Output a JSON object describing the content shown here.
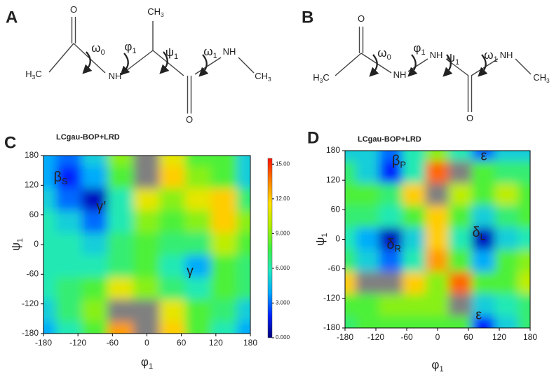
{
  "molecules": [
    {
      "panel": "A",
      "labels": [
        {
          "base": "O"
        },
        {
          "base": "CH",
          "sub": "3"
        },
        {
          "base": "H",
          "sub": "3",
          "tail": "C"
        },
        {
          "base": "NH"
        },
        {
          "base": "NH"
        },
        {
          "base": "CH",
          "sub": "3"
        },
        {
          "base": "O"
        },
        {
          "base": "ω",
          "sub": "0"
        },
        {
          "base": "φ",
          "sub": "1"
        },
        {
          "base": "ψ",
          "sub": "1"
        },
        {
          "base": "ω",
          "sub": "1"
        }
      ]
    },
    {
      "panel": "B",
      "labels": [
        {
          "base": "O"
        },
        {
          "base": "H",
          "sub": "3",
          "tail": "C"
        },
        {
          "base": "NH"
        },
        {
          "base": "NH"
        },
        {
          "base": "NH"
        },
        {
          "base": "CH",
          "sub": "3"
        },
        {
          "base": "O"
        },
        {
          "base": "ω",
          "sub": "0"
        },
        {
          "base": "φ",
          "sub": "1"
        },
        {
          "base": "ψ",
          "sub": "1"
        },
        {
          "base": "ω",
          "sub": "1"
        }
      ]
    }
  ],
  "chart_data": [
    {
      "type": "contour",
      "panel": "C",
      "title": "LCgau-BOP+LRD",
      "x_label": {
        "base": "φ",
        "sub": "1"
      },
      "y_label": {
        "base": "ψ",
        "sub": "1"
      },
      "x": [
        -180,
        -135,
        -90,
        -45,
        0,
        45,
        90,
        135,
        180
      ],
      "y": [
        180,
        135,
        90,
        45,
        0,
        -45,
        -90,
        -135,
        -180
      ],
      "z": [
        [
          4,
          3,
          5,
          9,
          16,
          11,
          8,
          8,
          5
        ],
        [
          4,
          2,
          4,
          8,
          16,
          12,
          9,
          8,
          5
        ],
        [
          5,
          3,
          1,
          6,
          11,
          9,
          11,
          12,
          7
        ],
        [
          6,
          5,
          3,
          6,
          9,
          8,
          9,
          12,
          9
        ],
        [
          6,
          6,
          5,
          7,
          8,
          7,
          7,
          10,
          8
        ],
        [
          6,
          6,
          6,
          7,
          8,
          6,
          4,
          8,
          7
        ],
        [
          6,
          7,
          8,
          11,
          9,
          7,
          6,
          8,
          7
        ],
        [
          5,
          7,
          9,
          16,
          16,
          11,
          8,
          7,
          5
        ],
        [
          4,
          6,
          8,
          13,
          16,
          12,
          8,
          6,
          4
        ]
      ],
      "xlim": [
        -180,
        180
      ],
      "ylim": [
        -180,
        180
      ],
      "xticks": [
        -180,
        -120,
        -60,
        0,
        60,
        120,
        180
      ],
      "yticks": [
        -180,
        -120,
        -60,
        0,
        60,
        120,
        180
      ],
      "zlim": [
        0,
        15.5
      ],
      "colormap": [
        "#00007a",
        "#0020ff",
        "#00a8ff",
        "#20e8c0",
        "#40f040",
        "#b0f000",
        "#ffe000",
        "#ff8000",
        "#ff1000"
      ],
      "over_color": "#808080",
      "colorbar": true,
      "colorbar_ticks": [
        {
          "value": 0,
          "label": "0.000"
        },
        {
          "value": 3,
          "label": "3.000"
        },
        {
          "value": 6,
          "label": "6.000"
        },
        {
          "value": 9,
          "label": "9.000"
        },
        {
          "value": 12,
          "label": "12.00"
        },
        {
          "value": 15,
          "label": "15.00"
        }
      ],
      "annotations": [
        {
          "base": "β",
          "sub": "S",
          "x": -150,
          "y": 135
        },
        {
          "base": "γ′",
          "x": -80,
          "y": 75
        },
        {
          "base": "γ",
          "x": 75,
          "y": -55
        }
      ]
    },
    {
      "type": "contour",
      "panel": "D",
      "title": "LCgau-BOP+LRD",
      "x_label": {
        "base": "φ",
        "sub": "1"
      },
      "y_label": {
        "base": "ψ",
        "sub": "1"
      },
      "x": [
        -180,
        -135,
        -90,
        -45,
        0,
        45,
        90,
        135,
        180
      ],
      "y": [
        180,
        135,
        90,
        45,
        0,
        -45,
        -90,
        -135,
        -180
      ],
      "z": [
        [
          5,
          5,
          3,
          6,
          9,
          6,
          3,
          5,
          5
        ],
        [
          7,
          5,
          2,
          6,
          14,
          16,
          8,
          7,
          7
        ],
        [
          8,
          8,
          7,
          12,
          16,
          10,
          8,
          10,
          8
        ],
        [
          7,
          7,
          6,
          8,
          12,
          8,
          5,
          7,
          8
        ],
        [
          6,
          4,
          1,
          5,
          12,
          6,
          1,
          5,
          6
        ],
        [
          7,
          5,
          3,
          6,
          13,
          8,
          4,
          8,
          9
        ],
        [
          12,
          16,
          16,
          12,
          9,
          14,
          8,
          8,
          10
        ],
        [
          8,
          8,
          9,
          9,
          9,
          16,
          5,
          6,
          7
        ],
        [
          7,
          8,
          8,
          8,
          8,
          8,
          2,
          5,
          7
        ]
      ],
      "xlim": [
        -180,
        180
      ],
      "ylim": [
        -180,
        180
      ],
      "xticks": [
        -180,
        -120,
        -60,
        0,
        60,
        120,
        180
      ],
      "yticks": [
        -180,
        -120,
        -60,
        0,
        60,
        120,
        180
      ],
      "zlim": [
        0,
        15.5
      ],
      "colormap": [
        "#00007a",
        "#0020ff",
        "#00a8ff",
        "#20e8c0",
        "#40f040",
        "#b0f000",
        "#ffe000",
        "#ff8000",
        "#ff1000"
      ],
      "over_color": "#808080",
      "colorbar": false,
      "annotations": [
        {
          "base": "β",
          "sub": "P",
          "x": -75,
          "y": 158
        },
        {
          "base": "ε",
          "x": 90,
          "y": 168
        },
        {
          "base": "δ",
          "sub": "R",
          "x": -85,
          "y": -12
        },
        {
          "base": "δ",
          "sub": "L",
          "x": 80,
          "y": 12
        },
        {
          "base": "ε",
          "x": 80,
          "y": -155
        }
      ]
    }
  ]
}
